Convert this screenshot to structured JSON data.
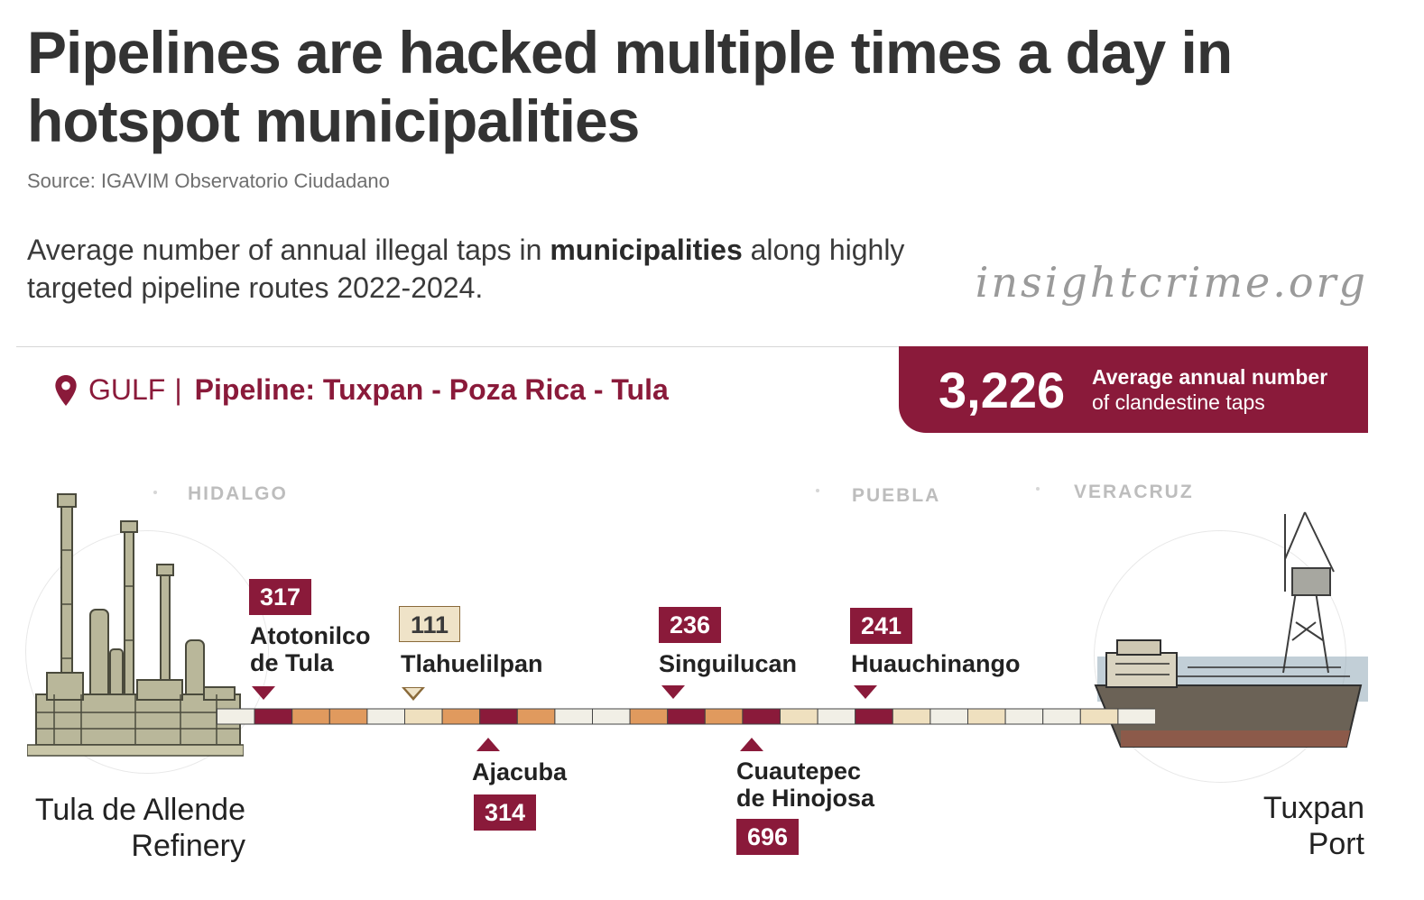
{
  "header": {
    "title": "Pipelines are hacked multiple times a day in hotspot municipalities",
    "source": "Source: IGAVIM Observatorio Ciudadano",
    "subtitle_pre": "Average number of annual illegal taps in ",
    "subtitle_bold": "municipalities",
    "subtitle_post": " along highly targeted pipeline routes 2022-2024.",
    "brand": "insightcrime.org"
  },
  "route": {
    "region": "GULF",
    "separator": "|",
    "pipeline": "Pipeline: Tuxpan - Poza Rica - Tula",
    "icon": "map-pin-icon"
  },
  "stat": {
    "value": "3,226",
    "label_line1": "Average annual number",
    "label_line2": "of clandestine taps"
  },
  "states": {
    "hidalgo": "HIDALGO",
    "puebla": "PUEBLA",
    "veracruz": "VERACRUZ"
  },
  "endpoints": {
    "left_line1": "Tula de Allende",
    "left_line2": "Refinery",
    "left_icon": "refinery-icon",
    "right_line1": "Tuxpan",
    "right_line2": "Port",
    "right_icon": "port-ship-icon"
  },
  "municipalities": [
    {
      "name1": "Atotonilco",
      "name2": "de Tula",
      "value": "317"
    },
    {
      "name1": "Tlahuelilpan",
      "name2": "",
      "value": "111"
    },
    {
      "name1": "Ajacuba",
      "name2": "",
      "value": "314"
    },
    {
      "name1": "Singuilucan",
      "name2": "",
      "value": "236"
    },
    {
      "name1": "Cuautepec",
      "name2": "de Hinojosa",
      "value": "696"
    },
    {
      "name1": "Huauchinango",
      "name2": "",
      "value": "241"
    }
  ],
  "pipeline_segments": [
    "light",
    "dark",
    "orange",
    "orange",
    "light",
    "beige",
    "orange",
    "dark",
    "orange",
    "light",
    "light",
    "orange",
    "dark",
    "orange",
    "dark",
    "beige",
    "light",
    "dark",
    "beige",
    "light",
    "beige",
    "light",
    "light",
    "beige",
    "light"
  ],
  "colors": {
    "dark": "#8a1a3a",
    "orange": "#e09a5e",
    "beige": "#efe0bf",
    "light": "#f1efe6",
    "stroke": "#444444"
  }
}
